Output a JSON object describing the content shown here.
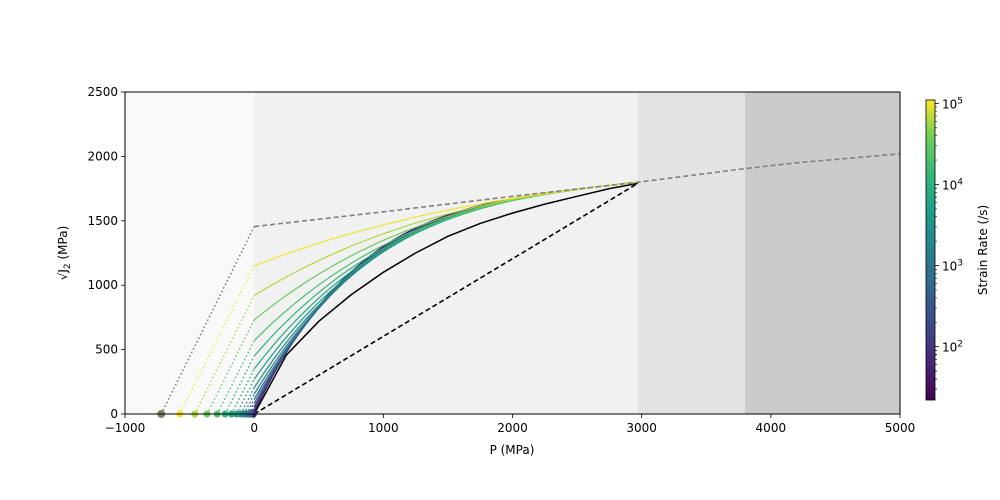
{
  "chart_data": {
    "type": "line",
    "xlabel": "P (MPa)",
    "ylabel_prefix": "√J",
    "ylabel_sub": "2",
    "ylabel_suffix": " (MPa)",
    "xlim": [
      -1000,
      5000
    ],
    "ylim": [
      0,
      2500
    ],
    "x_ticks": [
      -1000,
      0,
      1000,
      2000,
      3000,
      4000,
      5000
    ],
    "x_tick_labels": [
      "−1000",
      "0",
      "1000",
      "2000",
      "3000",
      "4000",
      "5000"
    ],
    "y_ticks": [
      0,
      500,
      1000,
      1500,
      2000,
      2500
    ],
    "y_tick_labels": [
      "0",
      "500",
      "1000",
      "1500",
      "2000",
      "2500"
    ],
    "background_bands": [
      {
        "x0": -1000,
        "x1": 0,
        "color": "#f9f9f9"
      },
      {
        "x0": 0,
        "x1": 2970,
        "color": "#f1f1f1"
      },
      {
        "x0": 2970,
        "x1": 3800,
        "color": "#e3e3e3"
      },
      {
        "x0": 3800,
        "x1": 5000,
        "color": "#cbcbcb"
      }
    ],
    "upper_envelope": {
      "color": "#808080",
      "style": "dashed",
      "x": [
        0,
        1000,
        2000,
        2970,
        3800,
        4200,
        5000
      ],
      "y": [
        1455,
        1570,
        1690,
        1800,
        1905,
        1950,
        2020
      ]
    },
    "lower_envelope": {
      "color": "#000000",
      "style": "dashed",
      "x": [
        0,
        2970
      ],
      "y": [
        0,
        1790
      ]
    },
    "reference_curve": {
      "color": "#000000",
      "x": [
        0,
        250,
        500,
        750,
        1000,
        1250,
        1500,
        1750,
        2000,
        2250,
        2500,
        2750,
        2970
      ],
      "y": [
        0,
        460,
        720,
        925,
        1100,
        1250,
        1380,
        1480,
        1560,
        1630,
        1690,
        1750,
        1790
      ]
    },
    "strain_rate_curves": [
      {
        "strain_rate": 100000,
        "y0": 1150,
        "p_intercept": -575
      },
      {
        "strain_rate": 60000,
        "y0": 920,
        "p_intercept": -460
      },
      {
        "strain_rate": 35000,
        "y0": 730,
        "p_intercept": -365
      },
      {
        "strain_rate": 20000,
        "y0": 570,
        "p_intercept": -285
      },
      {
        "strain_rate": 12000,
        "y0": 450,
        "p_intercept": -225
      },
      {
        "strain_rate": 7000,
        "y0": 350,
        "p_intercept": -175
      },
      {
        "strain_rate": 4000,
        "y0": 270,
        "p_intercept": -135
      },
      {
        "strain_rate": 2300,
        "y0": 205,
        "p_intercept": -102
      },
      {
        "strain_rate": 1300,
        "y0": 155,
        "p_intercept": -78
      },
      {
        "strain_rate": 750,
        "y0": 115,
        "p_intercept": -57
      },
      {
        "strain_rate": 430,
        "y0": 85,
        "p_intercept": -42
      },
      {
        "strain_rate": 250,
        "y0": 60,
        "p_intercept": -30
      },
      {
        "strain_rate": 140,
        "y0": 40,
        "p_intercept": -20
      },
      {
        "strain_rate": 80,
        "y0": 25,
        "p_intercept": -12
      },
      {
        "strain_rate": 45,
        "y0": 12,
        "p_intercept": -6
      }
    ],
    "envelope_tension_point": {
      "x": -720,
      "y": 0,
      "color": "#808060"
    },
    "colorbar": {
      "label": "Strain Rate (/s)",
      "scale": "log",
      "range": [
        22,
        110000
      ],
      "colormap": "viridis",
      "ticks": [
        100,
        1000,
        10000,
        100000
      ],
      "tick_base": "10",
      "tick_exponents": [
        "2",
        "3",
        "4",
        "5"
      ]
    }
  }
}
